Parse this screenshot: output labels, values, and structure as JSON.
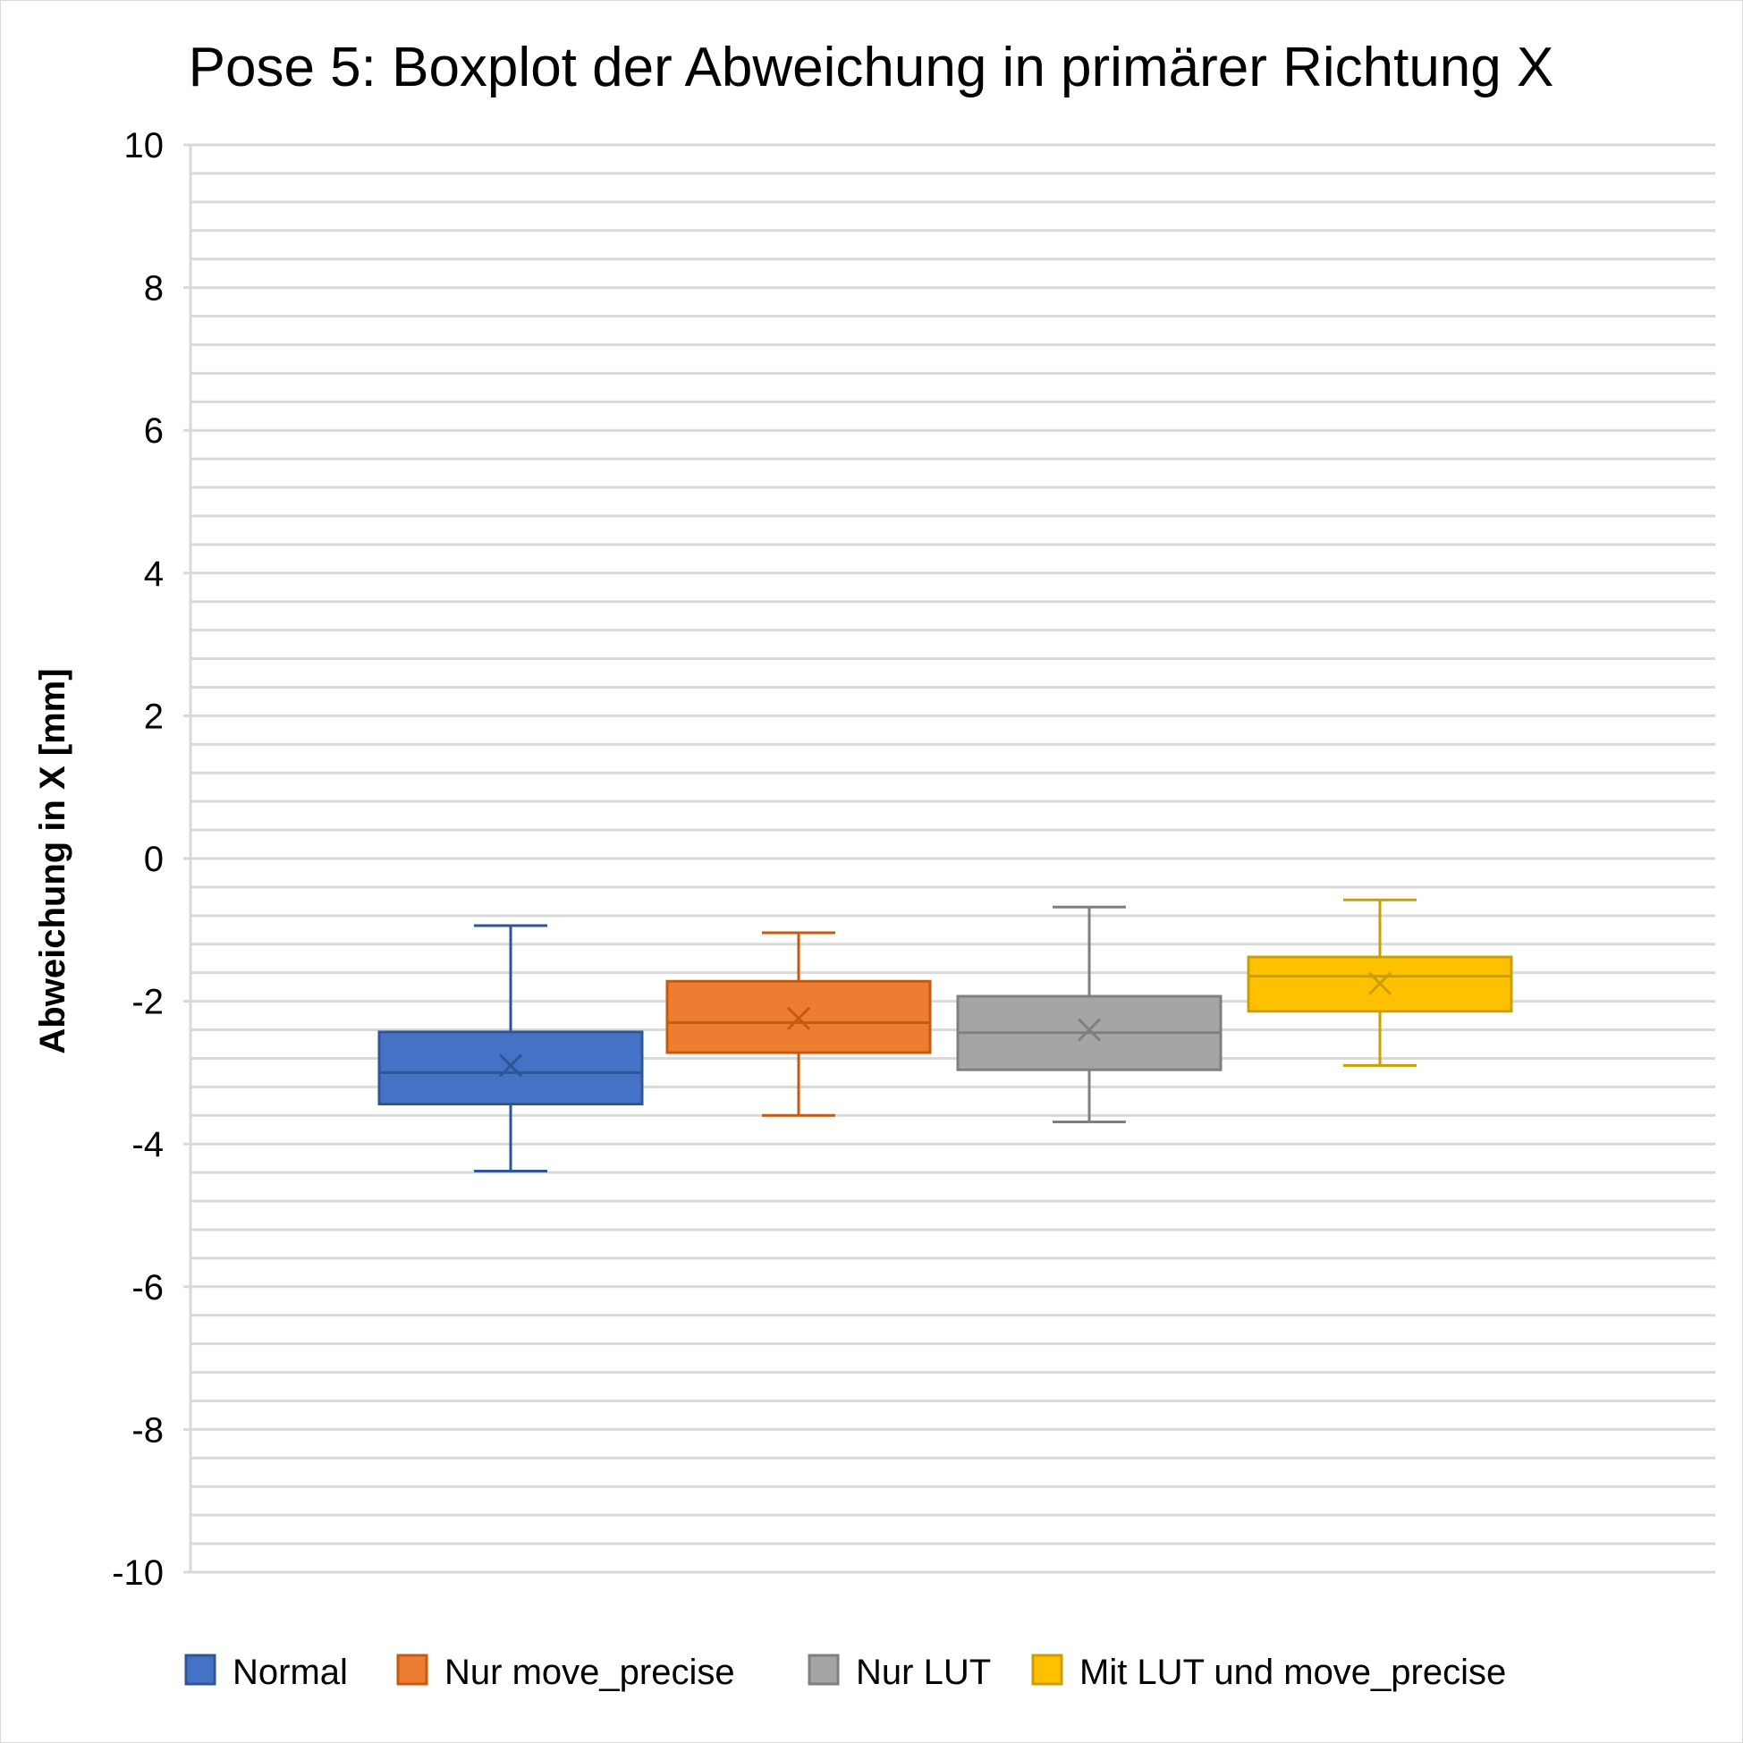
{
  "chart_data": {
    "type": "boxplot",
    "title": "Pose 5: Boxplot der Abweichung in primärer Richtung  X",
    "ylabel": "Abweichung in X [mm]",
    "xlabel": "",
    "ylim": [
      -10,
      10
    ],
    "y_major_step": 2,
    "y_minor_step": 0.4,
    "grid": true,
    "legend_position": "bottom",
    "y_ticks": [
      "10",
      "8",
      "6",
      "4",
      "2",
      "0",
      "-2",
      "-4",
      "-6",
      "-8",
      "-10"
    ],
    "series": [
      {
        "name": "Normal",
        "color": "#4472C4",
        "border": "#2F5597",
        "min": -4.38,
        "q1": -3.44,
        "median": -3.0,
        "q3": -2.43,
        "max": -0.94,
        "mean": -2.9
      },
      {
        "name": "Nur move_precise",
        "color": "#ED7D31",
        "border": "#C55A11",
        "min": -3.6,
        "q1": -2.72,
        "median": -2.3,
        "q3": -1.72,
        "max": -1.04,
        "mean": -2.24
      },
      {
        "name": "Nur LUT",
        "color": "#A5A5A5",
        "border": "#7F7F7F",
        "min": -3.69,
        "q1": -2.96,
        "median": -2.44,
        "q3": -1.93,
        "max": -0.68,
        "mean": -2.4
      },
      {
        "name": "Mit LUT und move_precise",
        "color": "#FFC000",
        "border": "#C9A000",
        "min": -2.9,
        "q1": -2.14,
        "median": -1.65,
        "q3": -1.38,
        "max": -0.58,
        "mean": -1.75
      }
    ]
  }
}
